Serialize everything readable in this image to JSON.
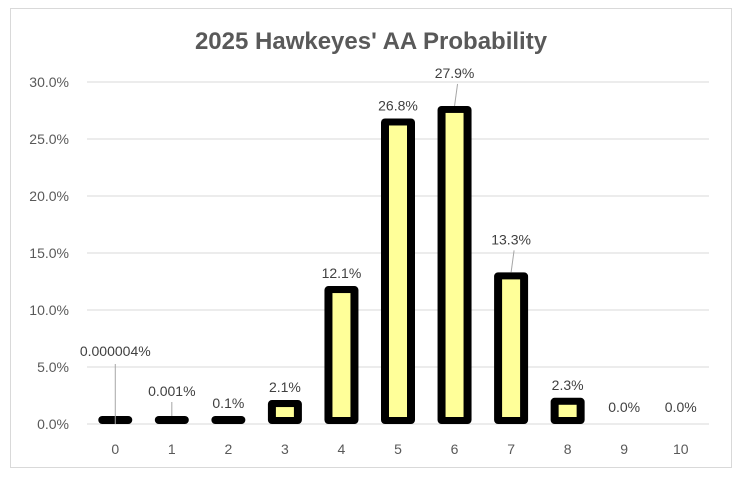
{
  "chart_data": {
    "type": "bar",
    "title": "2025 Hawkeyes' AA Probability",
    "xlabel": "",
    "ylabel": "",
    "categories": [
      "0",
      "1",
      "2",
      "3",
      "4",
      "5",
      "6",
      "7",
      "8",
      "9",
      "10"
    ],
    "values": [
      4e-06,
      0.001,
      0.1,
      2.1,
      12.1,
      26.8,
      27.9,
      13.3,
      2.3,
      0.0,
      0.0
    ],
    "data_labels": [
      "0.000004%",
      "0.001%",
      "0.1%",
      "2.1%",
      "12.1%",
      "26.8%",
      "27.9%",
      "13.3%",
      "2.3%",
      "0.0%",
      "0.0%"
    ],
    "y_ticks": [
      "0.0%",
      "5.0%",
      "10.0%",
      "15.0%",
      "20.0%",
      "25.0%",
      "30.0%"
    ],
    "ylim": [
      0,
      30
    ],
    "grid": true,
    "legend": "none",
    "colors": {
      "bar_fill": "#ffff99",
      "bar_outline": "#000000",
      "gridline": "#d9d9d9",
      "text": "#595959"
    }
  }
}
